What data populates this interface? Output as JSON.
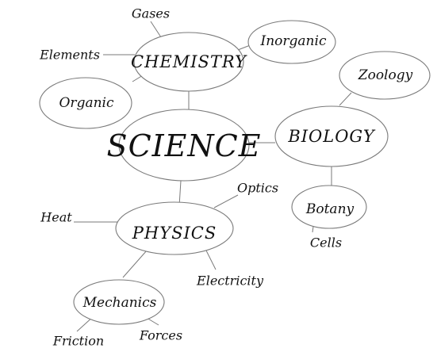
{
  "root": {
    "label": "SCIENCE"
  },
  "branches": {
    "chemistry": {
      "label": "CHEMISTRY",
      "children": {
        "gases": "Gases",
        "elements": "Elements",
        "inorganic": "Inorganic",
        "organic": "Organic"
      }
    },
    "biology": {
      "label": "BIOLOGY",
      "children": {
        "zoology": "Zoology",
        "botany": "Botany",
        "cells": "Cells"
      }
    },
    "physics": {
      "label": "PHYSICS",
      "children": {
        "optics": "Optics",
        "heat": "Heat",
        "electricity": "Electricity",
        "mechanics": "Mechanics",
        "friction": "Friction",
        "forces": "Forces"
      }
    }
  }
}
